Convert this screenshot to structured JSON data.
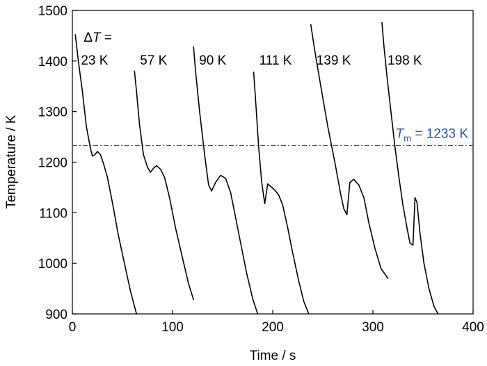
{
  "chart_data": {
    "type": "line",
    "title": "",
    "xlabel": "Time / s",
    "ylabel": "Temperature / K",
    "xlim": [
      0,
      400
    ],
    "ylim": [
      900,
      1500
    ],
    "xticks": [
      0,
      100,
      200,
      300,
      400
    ],
    "yticks": [
      900,
      1000,
      1100,
      1200,
      1300,
      1400,
      1500
    ],
    "grid": false,
    "legend": "none",
    "delta_t_prefix": "ΔT =",
    "reference_line": {
      "y": 1233,
      "label_symbol": "T",
      "label_subscript": "m",
      "label_rest": " = 1233 K",
      "color": "#2a56a0",
      "style": "dash-dot"
    },
    "series": [
      {
        "name": "23 K",
        "x": [
          3,
          6,
          10,
          14,
          18,
          20,
          22,
          25,
          28,
          31,
          35,
          40,
          46,
          52,
          58,
          64
        ],
        "y": [
          1452,
          1400,
          1340,
          1270,
          1228,
          1212,
          1214,
          1221,
          1215,
          1198,
          1170,
          1120,
          1055,
          1000,
          945,
          900
        ]
      },
      {
        "name": "57 K",
        "x": [
          62,
          64,
          67,
          71,
          75,
          78,
          81,
          84,
          88,
          92,
          97,
          103,
          110,
          116,
          121
        ],
        "y": [
          1380,
          1340,
          1275,
          1215,
          1190,
          1180,
          1188,
          1193,
          1186,
          1170,
          1130,
          1070,
          1010,
          960,
          928
        ]
      },
      {
        "name": "90 K",
        "x": [
          121,
          123,
          127,
          132,
          136,
          139,
          143,
          148,
          153,
          158,
          163,
          168,
          174,
          180,
          185
        ],
        "y": [
          1428,
          1380,
          1300,
          1215,
          1155,
          1143,
          1160,
          1174,
          1168,
          1140,
          1090,
          1040,
          980,
          930,
          900
        ]
      },
      {
        "name": "111 K",
        "x": [
          181,
          183,
          186,
          189,
          192,
          195,
          198,
          202,
          206,
          210,
          215,
          220,
          226,
          231,
          236
        ],
        "y": [
          1378,
          1320,
          1230,
          1160,
          1118,
          1157,
          1152,
          1145,
          1135,
          1115,
          1070,
          1020,
          965,
          925,
          900
        ]
      },
      {
        "name": "139 K",
        "x": [
          238,
          242,
          248,
          255,
          262,
          268,
          271,
          274,
          277,
          281,
          286,
          291,
          296,
          302,
          308,
          315
        ],
        "y": [
          1472,
          1420,
          1350,
          1270,
          1200,
          1135,
          1108,
          1096,
          1160,
          1166,
          1155,
          1130,
          1080,
          1030,
          990,
          970
        ]
      },
      {
        "name": "198 K",
        "x": [
          309,
          311,
          314,
          318,
          322,
          326,
          330,
          334,
          337,
          340,
          342,
          344,
          347,
          351,
          356,
          361,
          365
        ],
        "y": [
          1476,
          1430,
          1370,
          1300,
          1230,
          1170,
          1115,
          1070,
          1040,
          1036,
          1130,
          1120,
          1060,
          1000,
          950,
          915,
          900
        ]
      }
    ]
  }
}
